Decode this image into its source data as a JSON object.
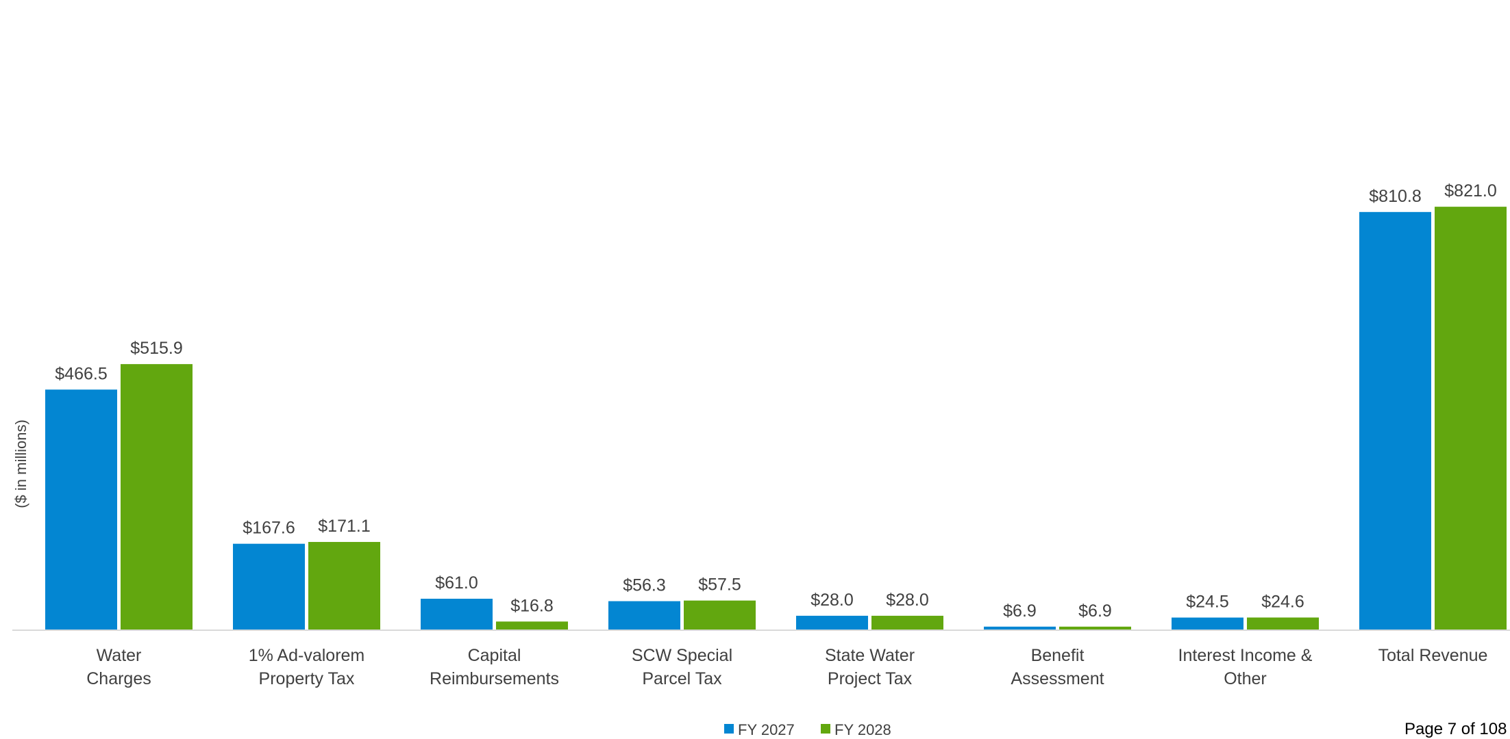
{
  "chart_data": {
    "type": "bar",
    "ylabel": "($ in millions)",
    "ylim": [
      0,
      860
    ],
    "grid": false,
    "legend_placement": "bottom",
    "categories": [
      [
        "Water",
        "Charges"
      ],
      [
        "1% Ad-valorem",
        "Property Tax"
      ],
      [
        "Capital",
        "Reimbursements"
      ],
      [
        "SCW Special",
        "Parcel Tax"
      ],
      [
        "State Water",
        "Project Tax"
      ],
      [
        "Benefit",
        "Assessment"
      ],
      [
        "Interest Income &",
        "Other"
      ],
      [
        "Total Revenue"
      ]
    ],
    "series": [
      {
        "name": "FY 2027",
        "color": "#0386D2",
        "values": [
          466.5,
          167.6,
          61.0,
          56.3,
          28.0,
          6.9,
          24.5,
          810.8
        ],
        "labels": [
          "$466.5",
          "$167.6",
          "$61.0",
          "$56.3",
          "$28.0",
          "$6.9",
          "$24.5",
          "$810.8"
        ]
      },
      {
        "name": "FY 2028",
        "color": "#62A70F",
        "values": [
          515.9,
          171.1,
          16.8,
          57.5,
          28.0,
          6.9,
          24.6,
          821.0
        ],
        "labels": [
          "$515.9",
          "$171.1",
          "$16.8",
          "$57.5",
          "$28.0",
          "$6.9",
          "$24.6",
          "$821.0"
        ]
      }
    ]
  },
  "page": {
    "number_text": "Page 7 of 108"
  }
}
